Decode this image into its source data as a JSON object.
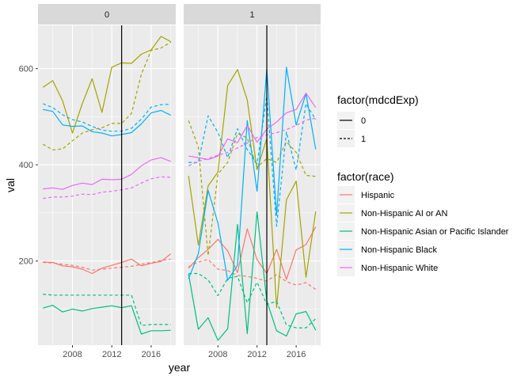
{
  "chart_data": {
    "type": "line",
    "xlabel": "year",
    "ylabel": "val",
    "xlim": [
      2004.5,
      2018.5
    ],
    "ylim": [
      25,
      690
    ],
    "xticks": [
      2008,
      2012,
      2016
    ],
    "yticks": [
      200,
      400,
      600
    ],
    "vline": 2013,
    "grid": "on",
    "legend_placement": "right",
    "x": [
      2005,
      2006,
      2007,
      2008,
      2009,
      2010,
      2011,
      2012,
      2013,
      2014,
      2015,
      2016,
      2017,
      2018
    ],
    "panels": [
      {
        "strip": "0",
        "series": [
          {
            "race": "Hispanic",
            "mdcdExp": "0",
            "values": [
              198,
              197,
              190,
              188,
              183,
              174,
              185,
              191,
              197,
              204,
              190,
              195,
              199,
              215
            ]
          },
          {
            "race": "Hispanic",
            "mdcdExp": "1",
            "values": [
              197,
              196,
              193,
              191,
              187,
              181,
              183,
              185,
              187,
              189,
              193,
              197,
              201,
              204
            ]
          },
          {
            "race": "Non-Hispanic AI or AN",
            "mdcdExp": "0",
            "values": [
              561,
              575,
              533,
              466,
              527,
              579,
              509,
              603,
              612,
              611,
              630,
              639,
              667,
              656
            ]
          },
          {
            "race": "Non-Hispanic AI or AN",
            "mdcdExp": "1",
            "values": [
              443,
              431,
              433,
              450,
              466,
              473,
              477,
              486,
              486,
              507,
              588,
              638,
              643,
              655
            ]
          },
          {
            "race": "Non-Hispanic Asian or Pacific Islander",
            "mdcdExp": "0",
            "values": [
              102,
              108,
              94,
              100,
              96,
              101,
              104,
              107,
              103,
              107,
              48,
              55,
              55,
              56
            ]
          },
          {
            "race": "Non-Hispanic Asian or Pacific Islander",
            "mdcdExp": "1",
            "values": [
              131,
              129,
              129,
              129,
              129,
              129,
              129,
              129,
              129,
              129,
              66,
              68,
              68,
              68
            ]
          },
          {
            "race": "Non-Hispanic Black",
            "mdcdExp": "0",
            "values": [
              515,
              511,
              483,
              480,
              481,
              469,
              466,
              460,
              463,
              467,
              485,
              508,
              513,
              503
            ]
          },
          {
            "race": "Non-Hispanic Black",
            "mdcdExp": "1",
            "values": [
              527,
              519,
              504,
              494,
              489,
              480,
              472,
              470,
              470,
              476,
              495,
              520,
              525,
              526
            ]
          },
          {
            "race": "Non-Hispanic White",
            "mdcdExp": "0",
            "values": [
              350,
              352,
              349,
              357,
              362,
              359,
              370,
              369,
              370,
              380,
              398,
              410,
              415,
              407
            ]
          },
          {
            "race": "Non-Hispanic White",
            "mdcdExp": "1",
            "values": [
              330,
              333,
              333,
              335,
              339,
              338,
              343,
              345,
              348,
              352,
              362,
              371,
              375,
              374
            ]
          }
        ]
      },
      {
        "strip": "1",
        "series": [
          {
            "race": "Hispanic",
            "mdcdExp": "0",
            "values": [
              185,
              207,
              224,
              245,
              221,
              176,
              267,
              203,
              174,
              224,
              162,
              223,
              234,
              271
            ]
          },
          {
            "race": "Hispanic",
            "mdcdExp": "1",
            "values": [
              188,
              198,
              203,
              183,
              180,
              170,
              168,
              164,
              158,
              172,
              157,
              150,
              155,
              141
            ]
          },
          {
            "race": "Non-Hispanic AI or AN",
            "mdcdExp": "0",
            "values": [
              377,
              233,
              356,
              385,
              565,
              598,
              535,
              390,
              455,
              103,
              327,
              366,
              166,
              303
            ]
          },
          {
            "race": "Non-Hispanic AI or AN",
            "mdcdExp": "1",
            "values": [
              492,
              437,
              211,
              381,
              405,
              465,
              456,
              395,
              413,
              405,
              448,
              426,
              378,
              376
            ]
          },
          {
            "race": "Non-Hispanic Asian or Pacific Islander",
            "mdcdExp": "0",
            "values": [
              173,
              58,
              82,
              35,
              59,
              276,
              49,
              302,
              117,
              55,
              44,
              90,
              95,
              56
            ]
          },
          {
            "race": "Non-Hispanic Asian or Pacific Islander",
            "mdcdExp": "1",
            "values": [
              174,
              174,
              161,
              128,
              164,
              168,
              113,
              156,
              110,
              116,
              67,
              61,
              61,
              80
            ]
          },
          {
            "race": "Non-Hispanic Black",
            "mdcdExp": "0",
            "values": [
              163,
              215,
              347,
              279,
              160,
              191,
              492,
              345,
              599,
              295,
              603,
              483,
              548,
              432
            ]
          },
          {
            "race": "Non-Hispanic Black",
            "mdcdExp": "1",
            "values": [
              405,
              405,
              502,
              467,
              415,
              475,
              432,
              402,
              543,
              272,
              468,
              389,
              527,
              494
            ]
          },
          {
            "race": "Non-Hispanic White",
            "mdcdExp": "0",
            "values": [
              418,
              415,
              411,
              418,
              454,
              446,
              482,
              447,
              474,
              489,
              508,
              515,
              549,
              519
            ]
          },
          {
            "race": "Non-Hispanic White",
            "mdcdExp": "1",
            "values": [
              398,
              407,
              413,
              420,
              426,
              435,
              445,
              457,
              462,
              467,
              473,
              482,
              493,
              497
            ]
          }
        ]
      }
    ],
    "legend_linetype": {
      "title": "factor(mdcdExp)",
      "entries": [
        {
          "label": "0",
          "dash": "solid"
        },
        {
          "label": "1",
          "dash": "dashed"
        }
      ]
    },
    "legend_color": {
      "title": "factor(race)",
      "entries": [
        {
          "label": "Hispanic",
          "color": "#F8766D"
        },
        {
          "label": "Non-Hispanic AI or AN",
          "color": "#A3A500"
        },
        {
          "label": "Non-Hispanic Asian or Pacific Islander",
          "color": "#00BF7D"
        },
        {
          "label": "Non-Hispanic Black",
          "color": "#00B0F6"
        },
        {
          "label": "Non-Hispanic White",
          "color": "#E76BF3"
        }
      ]
    }
  }
}
